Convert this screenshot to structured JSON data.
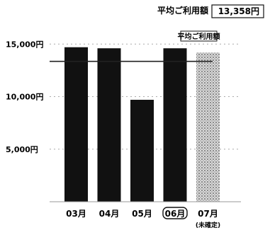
{
  "header": {
    "avg_label": "平均ご利用額",
    "avg_value": "13,358円"
  },
  "chart_data": {
    "type": "bar",
    "categories": [
      "03月",
      "04月",
      "05月",
      "06月",
      "07月"
    ],
    "category_notes": [
      "",
      "",
      "",
      "",
      "(未確定)"
    ],
    "values": [
      14700,
      14600,
      9700,
      14600,
      14200
    ],
    "estimated": [
      false,
      false,
      false,
      false,
      true
    ],
    "selected_index": 3,
    "reference_line": {
      "label": "平均ご利用額",
      "value": 13358
    },
    "y_ticks": [
      {
        "value": 15000,
        "label": "15,000円"
      },
      {
        "value": 10000,
        "label": "10,000円"
      },
      {
        "value": 5000,
        "label": "5,000円"
      }
    ],
    "ylim": [
      0,
      16500
    ],
    "title": "",
    "xlabel": "",
    "ylabel": "",
    "grid": "horizontal-dashed",
    "colors": {
      "bar": "#111111",
      "estimated_bar": "#bdbdbd",
      "line": "#222222"
    }
  }
}
